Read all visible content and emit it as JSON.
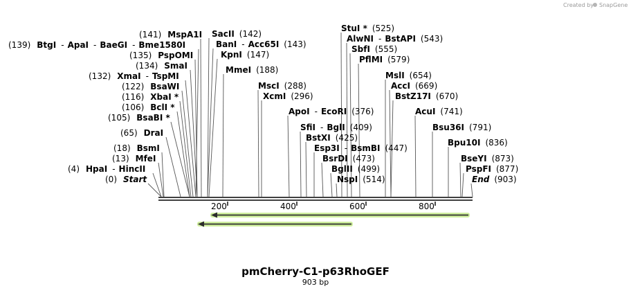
{
  "credit": {
    "prefix": "Created by",
    "brand": "SnapGene"
  },
  "sequence": {
    "name": "pmCherry-C1-p63RhoGEF",
    "length_label": "903 bp",
    "length": 903
  },
  "axis": {
    "ticks": [
      "200",
      "400",
      "600",
      "800"
    ]
  },
  "features": [
    {
      "name": "forward-arrow",
      "direction": "left",
      "start": 146,
      "end": 903,
      "color": "#8ee05a"
    },
    {
      "name": "reverse-arrow",
      "direction": "left",
      "start": 105,
      "end": 558,
      "color": "#8ee05a"
    }
  ],
  "sites": [
    {
      "row": 0,
      "parts": [
        {
          "pos": "(139)"
        },
        {
          "name": "BtgI"
        },
        {
          "name": "ApaI"
        },
        {
          "name": "BaeGI"
        },
        {
          "name": "Bme1580I"
        }
      ]
    },
    {
      "row": 1,
      "parts": [
        {
          "pos": "(141)"
        },
        {
          "name": "MspA1I"
        }
      ]
    },
    {
      "row": 2,
      "parts": [
        {
          "pos": "(135)"
        },
        {
          "name": "PspOMI"
        }
      ]
    },
    {
      "row": 3,
      "parts": [
        {
          "pos": "(134)"
        },
        {
          "name": "SmaI"
        }
      ]
    },
    {
      "row": 4,
      "parts": [
        {
          "pos": "(132)"
        },
        {
          "name": "XmaI"
        },
        {
          "name": "TspMI"
        }
      ]
    },
    {
      "row": 5,
      "parts": [
        {
          "pos": "(122)"
        },
        {
          "name": "BsaWI"
        }
      ]
    },
    {
      "row": 6,
      "parts": [
        {
          "pos": "(116)"
        },
        {
          "name": "XbaI *"
        }
      ]
    },
    {
      "row": 7,
      "parts": [
        {
          "pos": "(106)"
        },
        {
          "name": "BclI *"
        }
      ]
    },
    {
      "row": 8,
      "parts": [
        {
          "pos": "(105)"
        },
        {
          "name": "BsaBI *"
        }
      ]
    },
    {
      "row": 9,
      "parts": [
        {
          "pos": "(65)"
        },
        {
          "name": "DraI"
        }
      ]
    },
    {
      "row": 10,
      "parts": [
        {
          "pos": "(18)"
        },
        {
          "name": "BsmI"
        }
      ]
    },
    {
      "row": 11,
      "parts": [
        {
          "pos": "(13)"
        },
        {
          "name": "MfeI"
        }
      ]
    },
    {
      "row": 12,
      "parts": [
        {
          "pos": "(4)"
        },
        {
          "name": "HpaI"
        },
        {
          "name": "HincII"
        }
      ]
    },
    {
      "row": 13,
      "parts": [
        {
          "pos": "(0)"
        },
        {
          "name": "Start",
          "italic": true
        }
      ]
    },
    {
      "row": 14,
      "parts": [
        {
          "name": "SacII"
        },
        {
          "pos": "(142)"
        }
      ]
    },
    {
      "row": 15,
      "parts": [
        {
          "name": "BanI"
        },
        {
          "name": "Acc65I"
        },
        {
          "pos": "(143)"
        }
      ]
    },
    {
      "row": 16,
      "parts": [
        {
          "name": "KpnI"
        },
        {
          "pos": "(147)"
        }
      ]
    },
    {
      "row": 17,
      "parts": [
        {
          "name": "MmeI"
        },
        {
          "pos": "(188)"
        }
      ]
    },
    {
      "row": 18,
      "parts": [
        {
          "name": "MscI"
        },
        {
          "pos": "(288)"
        }
      ]
    },
    {
      "row": 19,
      "parts": [
        {
          "name": "XcmI"
        },
        {
          "pos": "(296)"
        }
      ]
    },
    {
      "row": 20,
      "parts": [
        {
          "name": "StuI *"
        },
        {
          "pos": "(525)"
        }
      ]
    },
    {
      "row": 21,
      "parts": [
        {
          "name": "AlwNI"
        },
        {
          "name": "BstAPI"
        },
        {
          "pos": "(543)"
        }
      ]
    },
    {
      "row": 22,
      "parts": [
        {
          "name": "SbfI"
        },
        {
          "pos": "(555)"
        }
      ]
    },
    {
      "row": 23,
      "parts": [
        {
          "name": "PflMI"
        },
        {
          "pos": "(579)"
        }
      ]
    },
    {
      "row": 24,
      "parts": [
        {
          "name": "MslI"
        },
        {
          "pos": "(654)"
        }
      ]
    },
    {
      "row": 25,
      "parts": [
        {
          "name": "AccI"
        },
        {
          "pos": "(669)"
        }
      ]
    },
    {
      "row": 26,
      "parts": [
        {
          "name": "BstZ17I"
        },
        {
          "pos": "(670)"
        }
      ]
    },
    {
      "row": 27,
      "parts": [
        {
          "name": "ApoI"
        },
        {
          "name": "EcoRI"
        },
        {
          "pos": "(376)"
        }
      ]
    },
    {
      "row": 28,
      "parts": [
        {
          "name": "AcuI"
        },
        {
          "pos": "(741)"
        }
      ]
    },
    {
      "row": 29,
      "parts": [
        {
          "name": "SfiI"
        },
        {
          "name": "BglI"
        },
        {
          "pos": "(409)"
        }
      ]
    },
    {
      "row": 30,
      "parts": [
        {
          "name": "Bsu36I"
        },
        {
          "pos": "(791)"
        }
      ]
    },
    {
      "row": 31,
      "parts": [
        {
          "name": "BstXI"
        },
        {
          "pos": "(425)"
        }
      ]
    },
    {
      "row": 32,
      "parts": [
        {
          "name": "Bpu10I"
        },
        {
          "pos": "(836)"
        }
      ]
    },
    {
      "row": 33,
      "parts": [
        {
          "name": "Esp3I"
        },
        {
          "name": "BsmBI"
        },
        {
          "pos": "(447)"
        }
      ]
    },
    {
      "row": 34,
      "parts": [
        {
          "name": "BsrDI"
        },
        {
          "pos": "(473)"
        }
      ]
    },
    {
      "row": 35,
      "parts": [
        {
          "name": "BseYI"
        },
        {
          "pos": "(873)"
        }
      ]
    },
    {
      "row": 36,
      "parts": [
        {
          "name": "BglII"
        },
        {
          "pos": "(499)"
        }
      ]
    },
    {
      "row": 37,
      "parts": [
        {
          "name": "PspFI"
        },
        {
          "pos": "(877)"
        }
      ]
    },
    {
      "row": 38,
      "parts": [
        {
          "name": "NspI"
        },
        {
          "pos": "(514)"
        }
      ]
    },
    {
      "row": 39,
      "parts": [
        {
          "name": "End",
          "italic": true
        },
        {
          "pos": "(903)"
        }
      ]
    }
  ]
}
